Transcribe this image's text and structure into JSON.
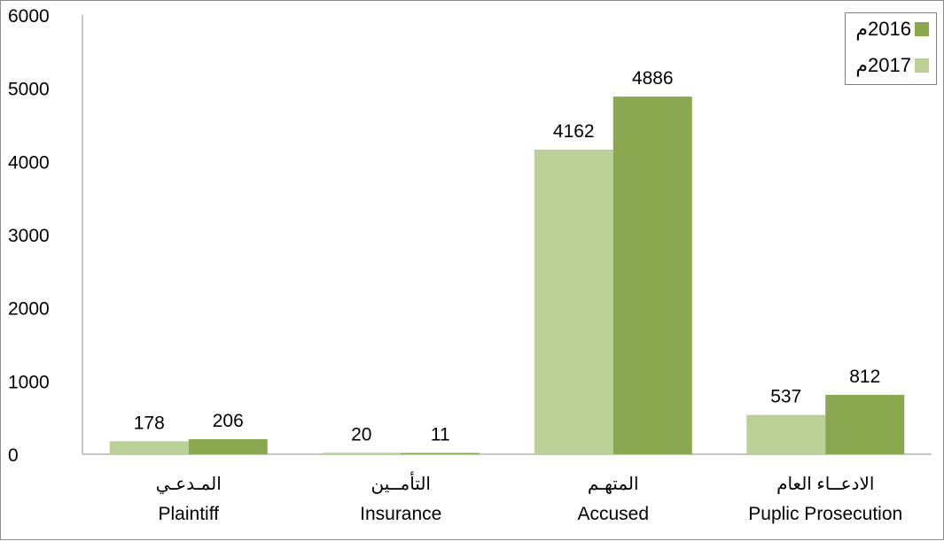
{
  "colors": {
    "series_2016": "#8aa84f",
    "series_2017": "#bad096"
  },
  "legend": {
    "items": [
      {
        "label": "2016م",
        "color_key": "series_2016"
      },
      {
        "label": "2017م",
        "color_key": "series_2017"
      }
    ]
  },
  "chart_data": {
    "type": "bar",
    "categories": [
      {
        "ar": "المـدعـي",
        "en": "Plaintiff"
      },
      {
        "ar": "التأمــين",
        "en": "Insurance"
      },
      {
        "ar": "المتهـم",
        "en": "Accused"
      },
      {
        "ar": "الادعــاء العام",
        "en": "Puplic Prosecution"
      }
    ],
    "series": [
      {
        "name": "2017م",
        "color": "#bad096",
        "values": [
          178,
          20,
          4162,
          537
        ]
      },
      {
        "name": "2016م",
        "color": "#8aa84f",
        "values": [
          206,
          11,
          4886,
          812
        ]
      }
    ],
    "y_ticks": [
      "0",
      "1000",
      "2000",
      "3000",
      "4000",
      "5000",
      "6000"
    ],
    "ylim": [
      0,
      6000
    ],
    "grid": false,
    "legend_position": "top-right",
    "data_labels": true
  }
}
